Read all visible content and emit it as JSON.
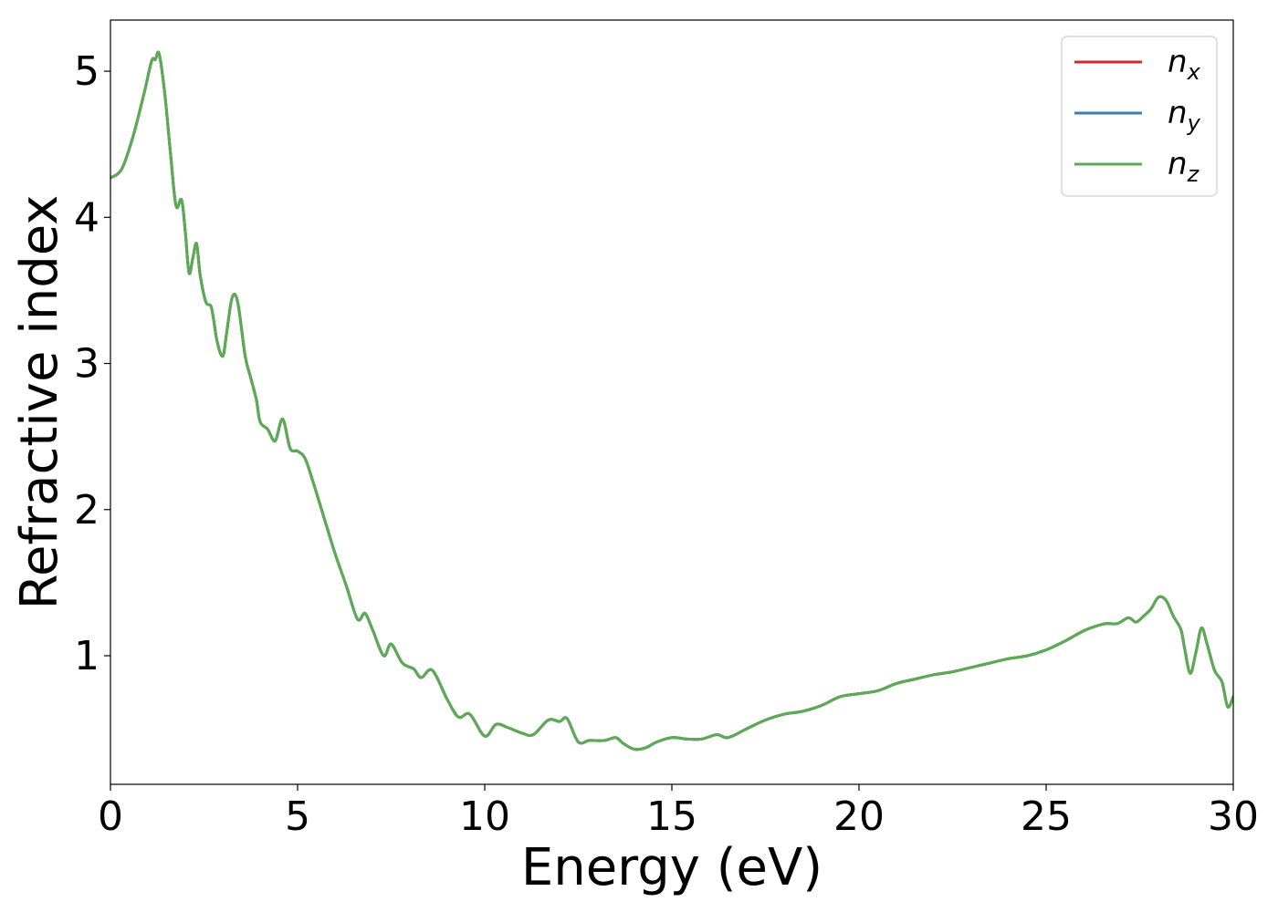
{
  "chart_data": {
    "type": "line",
    "xlabel": "Energy (eV)",
    "ylabel": "Refractive index",
    "xlim": [
      0,
      30
    ],
    "ylim": [
      0.12,
      5.35
    ],
    "x_ticks": [
      "0",
      "5",
      "10",
      "15",
      "20",
      "25",
      "30"
    ],
    "y_ticks": [
      "1",
      "2",
      "3",
      "4",
      "5"
    ],
    "grid": false,
    "legend_placement": "top-right",
    "series": [
      {
        "name": "n_x",
        "label_base": "n",
        "label_sub": "x",
        "color": "#d62728",
        "x": [
          0,
          0.3,
          0.6,
          0.9,
          1.1,
          1.2,
          1.3,
          1.45,
          1.6,
          1.75,
          1.9,
          2.0,
          2.1,
          2.2,
          2.3,
          2.4,
          2.55,
          2.7,
          2.85,
          3.0,
          3.1,
          3.25,
          3.4,
          3.6,
          3.75,
          3.9,
          4.0,
          4.2,
          4.4,
          4.6,
          4.8,
          5.0,
          5.2,
          5.4,
          5.7,
          6.0,
          6.3,
          6.6,
          6.8,
          7.0,
          7.3,
          7.5,
          7.8,
          8.1,
          8.3,
          8.6,
          9.0,
          9.3,
          9.6,
          10.0,
          10.3,
          10.6,
          11.0,
          11.3,
          11.7,
          12.0,
          12.2,
          12.5,
          12.8,
          13.2,
          13.5,
          13.7,
          14.0,
          14.3,
          14.6,
          15.0,
          15.4,
          15.8,
          16.2,
          16.5,
          17.0,
          17.5,
          18.0,
          18.5,
          19.0,
          19.5,
          20.0,
          20.5,
          21.0,
          21.5,
          22.0,
          22.5,
          23.0,
          23.5,
          24.0,
          24.5,
          25.0,
          25.5,
          26.0,
          26.3,
          26.6,
          26.9,
          27.2,
          27.4,
          27.6,
          27.8,
          28.0,
          28.2,
          28.4,
          28.6,
          28.7,
          28.85,
          29.0,
          29.15,
          29.3,
          29.5,
          29.7,
          29.85,
          30.0
        ],
        "y": [
          4.27,
          4.33,
          4.55,
          4.85,
          5.07,
          5.08,
          5.12,
          4.85,
          4.45,
          4.08,
          4.12,
          3.9,
          3.62,
          3.72,
          3.82,
          3.6,
          3.42,
          3.38,
          3.15,
          3.05,
          3.2,
          3.45,
          3.42,
          3.05,
          2.9,
          2.75,
          2.6,
          2.55,
          2.47,
          2.62,
          2.42,
          2.4,
          2.35,
          2.2,
          1.95,
          1.7,
          1.48,
          1.25,
          1.29,
          1.18,
          1.0,
          1.08,
          0.95,
          0.91,
          0.85,
          0.9,
          0.7,
          0.58,
          0.6,
          0.45,
          0.53,
          0.51,
          0.47,
          0.46,
          0.56,
          0.55,
          0.57,
          0.41,
          0.42,
          0.42,
          0.44,
          0.4,
          0.36,
          0.37,
          0.41,
          0.44,
          0.43,
          0.43,
          0.46,
          0.44,
          0.5,
          0.56,
          0.6,
          0.62,
          0.66,
          0.72,
          0.74,
          0.76,
          0.81,
          0.84,
          0.87,
          0.89,
          0.92,
          0.95,
          0.98,
          1.0,
          1.04,
          1.1,
          1.17,
          1.2,
          1.22,
          1.22,
          1.26,
          1.23,
          1.27,
          1.32,
          1.4,
          1.38,
          1.27,
          1.18,
          1.05,
          0.88,
          1.02,
          1.19,
          1.08,
          0.9,
          0.82,
          0.65,
          0.72
        ]
      },
      {
        "name": "n_y",
        "label_base": "n",
        "label_sub": "y",
        "color": "#3a7fb0",
        "x": [
          0,
          0.3,
          0.6,
          0.9,
          1.1,
          1.2,
          1.3,
          1.45,
          1.6,
          1.75,
          1.9,
          2.0,
          2.1,
          2.2,
          2.3,
          2.4,
          2.55,
          2.7,
          2.85,
          3.0,
          3.1,
          3.25,
          3.4,
          3.6,
          3.75,
          3.9,
          4.0,
          4.2,
          4.4,
          4.6,
          4.8,
          5.0,
          5.2,
          5.4,
          5.7,
          6.0,
          6.3,
          6.6,
          6.8,
          7.0,
          7.3,
          7.5,
          7.8,
          8.1,
          8.3,
          8.6,
          9.0,
          9.3,
          9.6,
          10.0,
          10.3,
          10.6,
          11.0,
          11.3,
          11.7,
          12.0,
          12.2,
          12.5,
          12.8,
          13.2,
          13.5,
          13.7,
          14.0,
          14.3,
          14.6,
          15.0,
          15.4,
          15.8,
          16.2,
          16.5,
          17.0,
          17.5,
          18.0,
          18.5,
          19.0,
          19.5,
          20.0,
          20.5,
          21.0,
          21.5,
          22.0,
          22.5,
          23.0,
          23.5,
          24.0,
          24.5,
          25.0,
          25.5,
          26.0,
          26.3,
          26.6,
          26.9,
          27.2,
          27.4,
          27.6,
          27.8,
          28.0,
          28.2,
          28.4,
          28.6,
          28.7,
          28.85,
          29.0,
          29.15,
          29.3,
          29.5,
          29.7,
          29.85,
          30.0
        ],
        "y": [
          4.27,
          4.33,
          4.55,
          4.85,
          5.07,
          5.08,
          5.12,
          4.85,
          4.45,
          4.08,
          4.12,
          3.9,
          3.62,
          3.72,
          3.82,
          3.6,
          3.42,
          3.38,
          3.15,
          3.05,
          3.2,
          3.45,
          3.42,
          3.05,
          2.9,
          2.75,
          2.6,
          2.55,
          2.47,
          2.62,
          2.42,
          2.4,
          2.35,
          2.2,
          1.95,
          1.7,
          1.48,
          1.25,
          1.29,
          1.18,
          1.0,
          1.08,
          0.95,
          0.91,
          0.85,
          0.9,
          0.7,
          0.58,
          0.6,
          0.45,
          0.53,
          0.51,
          0.47,
          0.46,
          0.56,
          0.55,
          0.57,
          0.41,
          0.42,
          0.42,
          0.44,
          0.4,
          0.36,
          0.37,
          0.41,
          0.44,
          0.43,
          0.43,
          0.46,
          0.44,
          0.5,
          0.56,
          0.6,
          0.62,
          0.66,
          0.72,
          0.74,
          0.76,
          0.81,
          0.84,
          0.87,
          0.89,
          0.92,
          0.95,
          0.98,
          1.0,
          1.04,
          1.1,
          1.17,
          1.2,
          1.22,
          1.22,
          1.26,
          1.23,
          1.27,
          1.32,
          1.4,
          1.38,
          1.27,
          1.18,
          1.05,
          0.88,
          1.02,
          1.19,
          1.08,
          0.9,
          0.82,
          0.65,
          0.72
        ]
      },
      {
        "name": "n_z",
        "label_base": "n",
        "label_sub": "z",
        "color": "#5aab52",
        "x": [
          0,
          0.3,
          0.6,
          0.9,
          1.1,
          1.2,
          1.3,
          1.45,
          1.6,
          1.75,
          1.9,
          2.0,
          2.1,
          2.2,
          2.3,
          2.4,
          2.55,
          2.7,
          2.85,
          3.0,
          3.1,
          3.25,
          3.4,
          3.6,
          3.75,
          3.9,
          4.0,
          4.2,
          4.4,
          4.6,
          4.8,
          5.0,
          5.2,
          5.4,
          5.7,
          6.0,
          6.3,
          6.6,
          6.8,
          7.0,
          7.3,
          7.5,
          7.8,
          8.1,
          8.3,
          8.6,
          9.0,
          9.3,
          9.6,
          10.0,
          10.3,
          10.6,
          11.0,
          11.3,
          11.7,
          12.0,
          12.2,
          12.5,
          12.8,
          13.2,
          13.5,
          13.7,
          14.0,
          14.3,
          14.6,
          15.0,
          15.4,
          15.8,
          16.2,
          16.5,
          17.0,
          17.5,
          18.0,
          18.5,
          19.0,
          19.5,
          20.0,
          20.5,
          21.0,
          21.5,
          22.0,
          22.5,
          23.0,
          23.5,
          24.0,
          24.5,
          25.0,
          25.5,
          26.0,
          26.3,
          26.6,
          26.9,
          27.2,
          27.4,
          27.6,
          27.8,
          28.0,
          28.2,
          28.4,
          28.6,
          28.7,
          28.85,
          29.0,
          29.15,
          29.3,
          29.5,
          29.7,
          29.85,
          30.0
        ],
        "y": [
          4.27,
          4.33,
          4.55,
          4.85,
          5.07,
          5.08,
          5.12,
          4.85,
          4.45,
          4.08,
          4.12,
          3.9,
          3.62,
          3.72,
          3.82,
          3.6,
          3.42,
          3.38,
          3.15,
          3.05,
          3.2,
          3.45,
          3.42,
          3.05,
          2.9,
          2.75,
          2.6,
          2.55,
          2.47,
          2.62,
          2.42,
          2.4,
          2.35,
          2.2,
          1.95,
          1.7,
          1.48,
          1.25,
          1.29,
          1.18,
          1.0,
          1.08,
          0.95,
          0.91,
          0.85,
          0.9,
          0.7,
          0.58,
          0.6,
          0.45,
          0.53,
          0.51,
          0.47,
          0.46,
          0.56,
          0.55,
          0.57,
          0.41,
          0.42,
          0.42,
          0.44,
          0.4,
          0.36,
          0.37,
          0.41,
          0.44,
          0.43,
          0.43,
          0.46,
          0.44,
          0.5,
          0.56,
          0.6,
          0.62,
          0.66,
          0.72,
          0.74,
          0.76,
          0.81,
          0.84,
          0.87,
          0.89,
          0.92,
          0.95,
          0.98,
          1.0,
          1.04,
          1.1,
          1.17,
          1.2,
          1.22,
          1.22,
          1.26,
          1.23,
          1.27,
          1.32,
          1.4,
          1.38,
          1.27,
          1.18,
          1.05,
          0.88,
          1.02,
          1.19,
          1.08,
          0.9,
          0.82,
          0.65,
          0.72
        ]
      }
    ]
  }
}
